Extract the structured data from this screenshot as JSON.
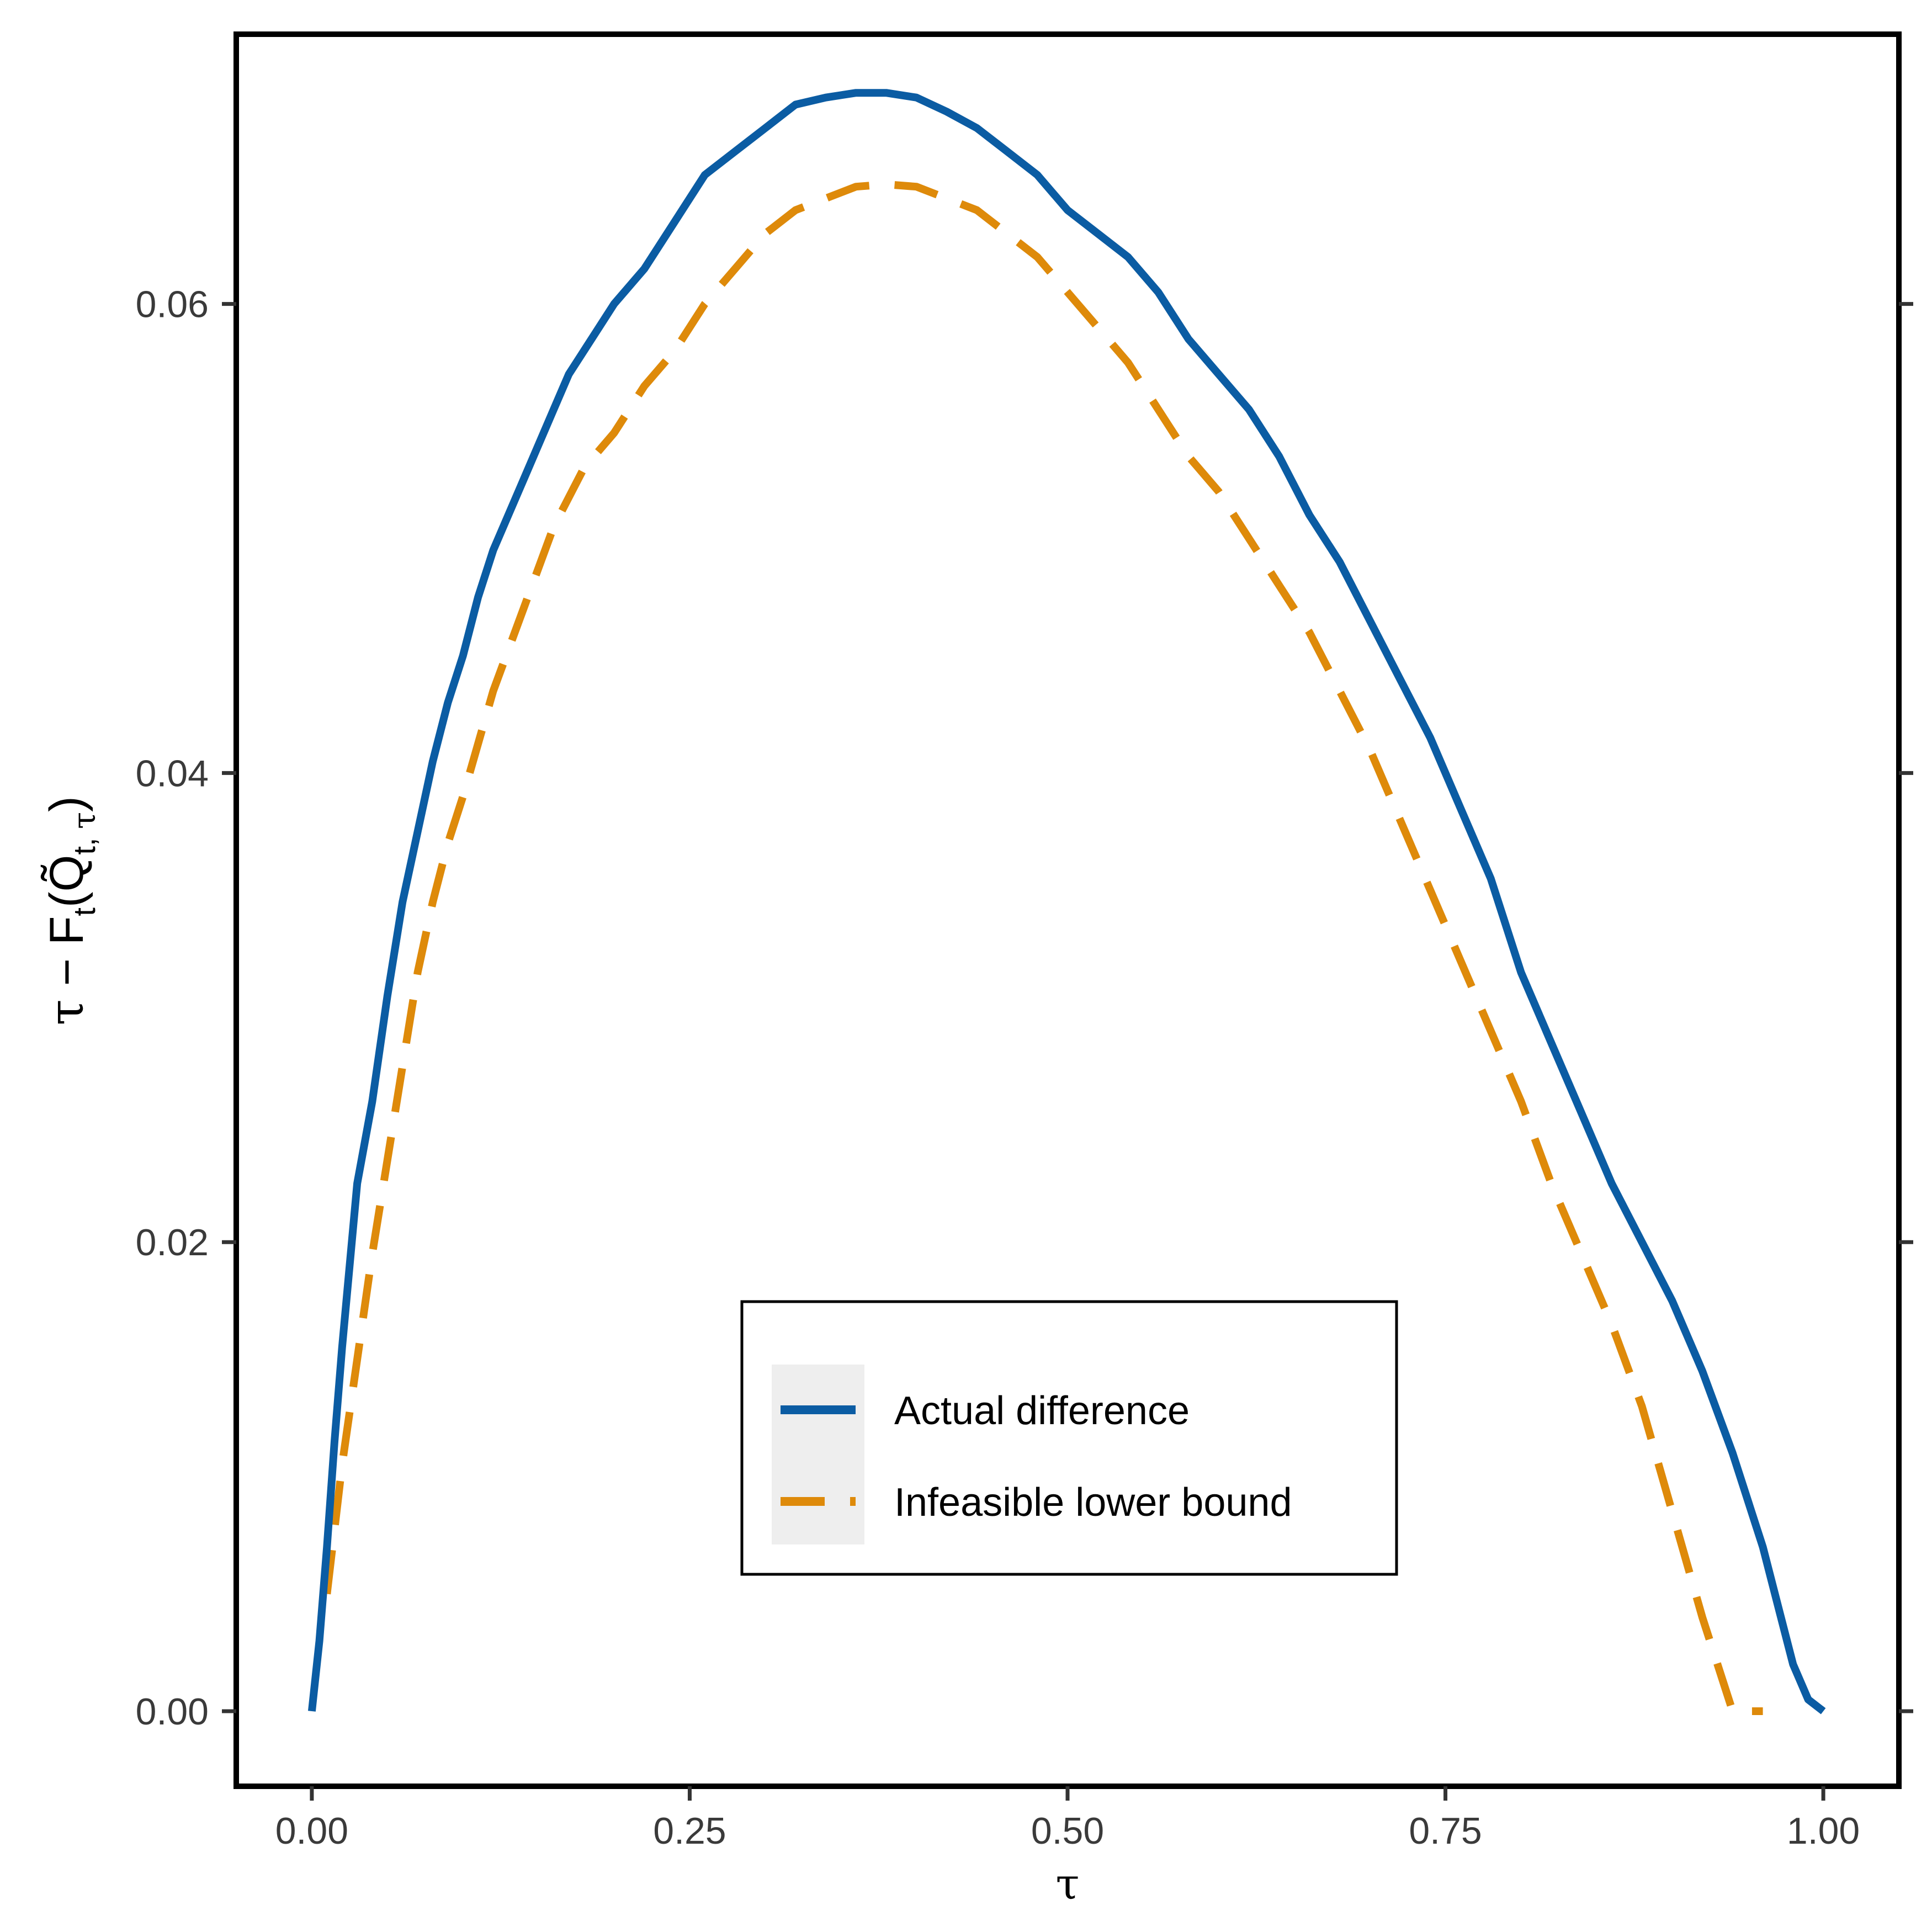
{
  "chart_data": {
    "type": "line",
    "title": "",
    "xlabel": "τ",
    "ylabel": {
      "parts": [
        "τ",
        " − F",
        "t",
        "(Q̃",
        "t, ",
        "τ",
        ")"
      ]
    },
    "xlim": [
      -0.05,
      1.05
    ],
    "ylim": [
      -0.0032,
      0.0715
    ],
    "x_ticks": [
      0.0,
      0.25,
      0.5,
      0.75,
      1.0
    ],
    "x_tick_labels": [
      "0.00",
      "0.25",
      "0.50",
      "0.75",
      "1.00"
    ],
    "y_ticks": [
      0.0,
      0.02,
      0.04,
      0.06
    ],
    "y_tick_labels": [
      "0.00",
      "0.02",
      "0.04",
      "0.06"
    ],
    "grid": false,
    "legend_position": "bottom-center",
    "series": [
      {
        "name": "Actual difference",
        "color": "#0B5CA3",
        "dash": "solid",
        "x": [
          0.0,
          0.005,
          0.01,
          0.015,
          0.02,
          0.025,
          0.03,
          0.04,
          0.05,
          0.06,
          0.07,
          0.08,
          0.09,
          0.1,
          0.11,
          0.12,
          0.13,
          0.14,
          0.15,
          0.16,
          0.17,
          0.18,
          0.19,
          0.2,
          0.22,
          0.24,
          0.26,
          0.28,
          0.3,
          0.32,
          0.34,
          0.36,
          0.38,
          0.4,
          0.42,
          0.44,
          0.46,
          0.48,
          0.5,
          0.52,
          0.54,
          0.56,
          0.58,
          0.6,
          0.62,
          0.64,
          0.66,
          0.68,
          0.7,
          0.72,
          0.74,
          0.76,
          0.78,
          0.8,
          0.82,
          0.84,
          0.86,
          0.88,
          0.9,
          0.92,
          0.94,
          0.96,
          0.97,
          0.98,
          0.99,
          1.0
        ],
        "y": [
          0.0,
          0.003,
          0.007,
          0.0115,
          0.0155,
          0.019,
          0.0225,
          0.026,
          0.0305,
          0.0345,
          0.0375,
          0.0405,
          0.043,
          0.045,
          0.0475,
          0.0495,
          0.051,
          0.0525,
          0.054,
          0.0555,
          0.057,
          0.058,
          0.059,
          0.06,
          0.0615,
          0.0635,
          0.0655,
          0.0665,
          0.0675,
          0.0685,
          0.0688,
          0.069,
          0.069,
          0.0688,
          0.0682,
          0.0675,
          0.0665,
          0.0655,
          0.064,
          0.063,
          0.062,
          0.0605,
          0.0585,
          0.057,
          0.0555,
          0.0535,
          0.051,
          0.049,
          0.0465,
          0.044,
          0.0415,
          0.0385,
          0.0355,
          0.0315,
          0.0285,
          0.0255,
          0.0225,
          0.02,
          0.0175,
          0.0145,
          0.011,
          0.007,
          0.0045,
          0.002,
          0.0005,
          0.0
        ]
      },
      {
        "name": "Infeasible lower bound",
        "color": "#DE8A0A",
        "dash": "dashed",
        "x": [
          0.01,
          0.02,
          0.03,
          0.04,
          0.05,
          0.06,
          0.07,
          0.08,
          0.09,
          0.1,
          0.12,
          0.14,
          0.16,
          0.18,
          0.2,
          0.22,
          0.24,
          0.26,
          0.28,
          0.3,
          0.32,
          0.34,
          0.36,
          0.38,
          0.4,
          0.42,
          0.44,
          0.46,
          0.48,
          0.5,
          0.52,
          0.54,
          0.56,
          0.58,
          0.6,
          0.62,
          0.64,
          0.66,
          0.68,
          0.7,
          0.72,
          0.74,
          0.76,
          0.78,
          0.8,
          0.82,
          0.84,
          0.86,
          0.88,
          0.9,
          0.92,
          0.94,
          0.96
        ],
        "y": [
          0.005,
          0.0105,
          0.015,
          0.0195,
          0.0235,
          0.0275,
          0.0315,
          0.0345,
          0.037,
          0.039,
          0.0435,
          0.047,
          0.0505,
          0.053,
          0.0545,
          0.0565,
          0.058,
          0.06,
          0.0615,
          0.063,
          0.064,
          0.0645,
          0.065,
          0.0651,
          0.065,
          0.0645,
          0.064,
          0.063,
          0.062,
          0.0605,
          0.059,
          0.0575,
          0.0555,
          0.0535,
          0.052,
          0.05,
          0.048,
          0.046,
          0.0435,
          0.041,
          0.038,
          0.035,
          0.032,
          0.029,
          0.026,
          0.0225,
          0.0195,
          0.0165,
          0.013,
          0.0085,
          0.004,
          0.0,
          0.0
        ],
        "x_visible_max": 0.96
      }
    ]
  }
}
